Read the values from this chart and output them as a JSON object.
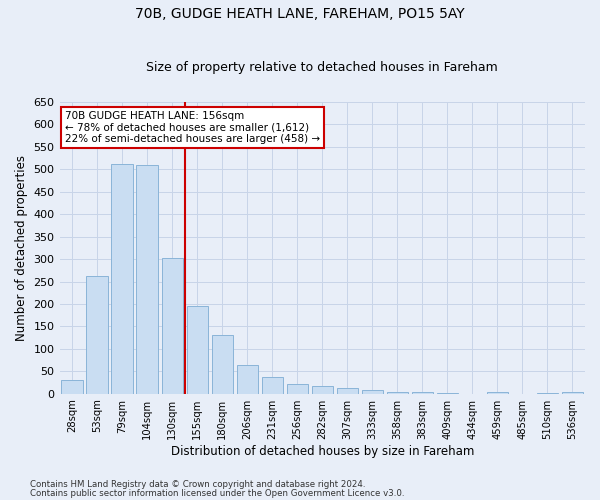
{
  "title": "70B, GUDGE HEATH LANE, FAREHAM, PO15 5AY",
  "subtitle": "Size of property relative to detached houses in Fareham",
  "xlabel": "Distribution of detached houses by size in Fareham",
  "ylabel": "Number of detached properties",
  "categories": [
    "28sqm",
    "53sqm",
    "79sqm",
    "104sqm",
    "130sqm",
    "155sqm",
    "180sqm",
    "206sqm",
    "231sqm",
    "256sqm",
    "282sqm",
    "307sqm",
    "333sqm",
    "358sqm",
    "383sqm",
    "409sqm",
    "434sqm",
    "459sqm",
    "485sqm",
    "510sqm",
    "536sqm"
  ],
  "values": [
    31,
    263,
    512,
    510,
    302,
    196,
    130,
    65,
    38,
    22,
    17,
    12,
    8,
    4,
    3,
    1,
    0,
    4,
    0,
    1,
    4
  ],
  "bar_color": "#c9ddf2",
  "bar_edge_color": "#8ab4d8",
  "grid_color": "#c8d4e8",
  "background_color": "#e8eef8",
  "annotation_line1": "70B GUDGE HEATH LANE: 156sqm",
  "annotation_line2": "← 78% of detached houses are smaller (1,612)",
  "annotation_line3": "22% of semi-detached houses are larger (458) →",
  "marker_color": "#cc0000",
  "annotation_box_color": "#ffffff",
  "annotation_box_edge": "#cc0000",
  "ylim": [
    0,
    650
  ],
  "yticks": [
    0,
    50,
    100,
    150,
    200,
    250,
    300,
    350,
    400,
    450,
    500,
    550,
    600,
    650
  ],
  "footnote1": "Contains HM Land Registry data © Crown copyright and database right 2024.",
  "footnote2": "Contains public sector information licensed under the Open Government Licence v3.0."
}
